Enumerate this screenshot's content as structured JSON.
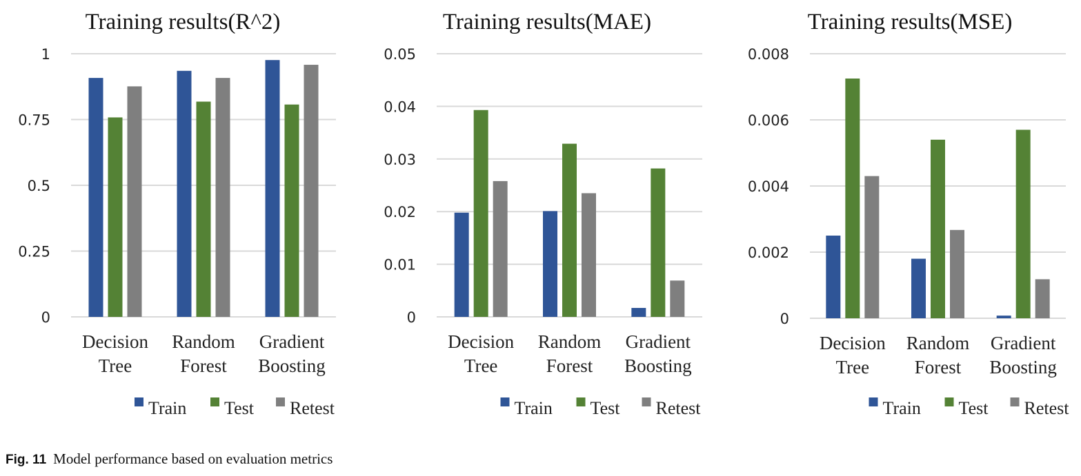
{
  "colors": {
    "Train": "#2f5597",
    "Test": "#548235",
    "Retest": "#7f7f7f",
    "grid": "#d9d9d9"
  },
  "chart_data": [
    {
      "type": "bar",
      "title": "Training results(R^2)",
      "categories": [
        "Decision Tree",
        "Random Forest",
        "Gradient Boosting"
      ],
      "ylim": [
        0,
        1
      ],
      "yticks": [
        "0",
        "0.25",
        "0.5",
        "0.75",
        "1"
      ],
      "grid": true,
      "legend": "bottom",
      "series": [
        {
          "name": "Train",
          "values": [
            0.908,
            0.935,
            0.976
          ]
        },
        {
          "name": "Test",
          "values": [
            0.758,
            0.818,
            0.807
          ]
        },
        {
          "name": "Retest",
          "values": [
            0.876,
            0.908,
            0.958
          ]
        }
      ]
    },
    {
      "type": "bar",
      "title": "Training results(MAE)",
      "categories": [
        "Decision Tree",
        "Random Forest",
        "Gradient Boosting"
      ],
      "ylim": [
        0,
        0.05
      ],
      "yticks": [
        "0",
        "0.01",
        "0.02",
        "0.03",
        "0.04",
        "0.05"
      ],
      "grid": true,
      "legend": "bottom",
      "series": [
        {
          "name": "Train",
          "values": [
            0.0198,
            0.0201,
            0.0017
          ]
        },
        {
          "name": "Test",
          "values": [
            0.0393,
            0.0329,
            0.0282
          ]
        },
        {
          "name": "Retest",
          "values": [
            0.0258,
            0.0235,
            0.0069
          ]
        }
      ]
    },
    {
      "type": "bar",
      "title": "Training results(MSE)",
      "categories": [
        "Decision Tree",
        "Random Forest",
        "Gradient Boosting"
      ],
      "ylim": [
        0,
        0.008
      ],
      "yticks": [
        "0",
        "0.002",
        "0.004",
        "0.006",
        "0.008"
      ],
      "grid": true,
      "legend": "bottom",
      "series": [
        {
          "name": "Train",
          "values": [
            0.0025,
            0.0018,
            8e-05
          ]
        },
        {
          "name": "Test",
          "values": [
            0.00725,
            0.0054,
            0.0057
          ]
        },
        {
          "name": "Retest",
          "values": [
            0.0043,
            0.00267,
            0.00118
          ]
        }
      ]
    }
  ],
  "caption": {
    "label": "Fig. 11",
    "text": "Model performance based on evaluation metrics"
  }
}
